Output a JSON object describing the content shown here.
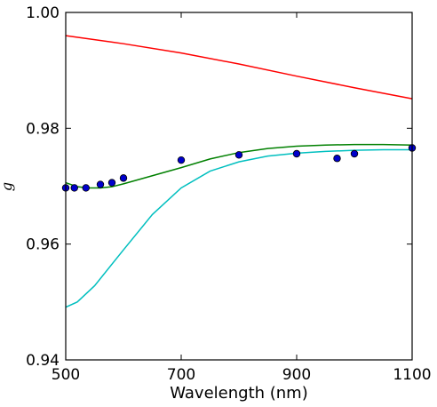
{
  "chart_data": {
    "type": "line",
    "title": "",
    "xlabel": "Wavelength (nm)",
    "ylabel": "g",
    "xlim": [
      500,
      1100
    ],
    "ylim": [
      0.94,
      1.0
    ],
    "x_ticks": [
      500,
      700,
      900,
      1100
    ],
    "x_tick_labels": [
      "500",
      "700",
      "900",
      "1100"
    ],
    "y_ticks": [
      0.94,
      0.96,
      0.98,
      1.0
    ],
    "y_tick_labels": [
      "0.94",
      "0.96",
      "0.98",
      "1.00"
    ],
    "grid": false,
    "legend": "none",
    "series": [
      {
        "kind": "line",
        "color": "#ff0000",
        "points": [
          [
            500,
            0.996
          ],
          [
            600,
            0.9946
          ],
          [
            700,
            0.993
          ],
          [
            800,
            0.9911
          ],
          [
            900,
            0.989
          ],
          [
            1000,
            0.987
          ],
          [
            1100,
            0.9851
          ]
        ]
      },
      {
        "kind": "line",
        "color": "#008000",
        "points": [
          [
            500,
            0.9706
          ],
          [
            520,
            0.9699
          ],
          [
            540,
            0.9697
          ],
          [
            560,
            0.9697
          ],
          [
            580,
            0.9699
          ],
          [
            600,
            0.9704
          ],
          [
            650,
            0.9718
          ],
          [
            700,
            0.9732
          ],
          [
            750,
            0.9747
          ],
          [
            800,
            0.9758
          ],
          [
            850,
            0.9765
          ],
          [
            900,
            0.9769
          ],
          [
            950,
            0.9771
          ],
          [
            1000,
            0.9772
          ],
          [
            1050,
            0.9772
          ],
          [
            1100,
            0.9771
          ]
        ]
      },
      {
        "kind": "line",
        "color": "#00bfbf",
        "points": [
          [
            500,
            0.9491
          ],
          [
            520,
            0.95
          ],
          [
            550,
            0.9528
          ],
          [
            600,
            0.959
          ],
          [
            650,
            0.9651
          ],
          [
            700,
            0.9697
          ],
          [
            750,
            0.9726
          ],
          [
            800,
            0.9742
          ],
          [
            850,
            0.9752
          ],
          [
            900,
            0.9757
          ],
          [
            950,
            0.976
          ],
          [
            1000,
            0.9762
          ],
          [
            1050,
            0.9763
          ],
          [
            1100,
            0.9763
          ]
        ]
      },
      {
        "kind": "scatter",
        "color": "#0000cc",
        "edge": "#000000",
        "points": [
          [
            500,
            0.9697
          ],
          [
            515,
            0.9697
          ],
          [
            535,
            0.9697
          ],
          [
            560,
            0.9703
          ],
          [
            580,
            0.9706
          ],
          [
            600,
            0.9714
          ],
          [
            700,
            0.9745
          ],
          [
            800,
            0.9754
          ],
          [
            900,
            0.9756
          ],
          [
            970,
            0.9748
          ],
          [
            1000,
            0.9756
          ],
          [
            1100,
            0.9766
          ]
        ]
      }
    ]
  }
}
